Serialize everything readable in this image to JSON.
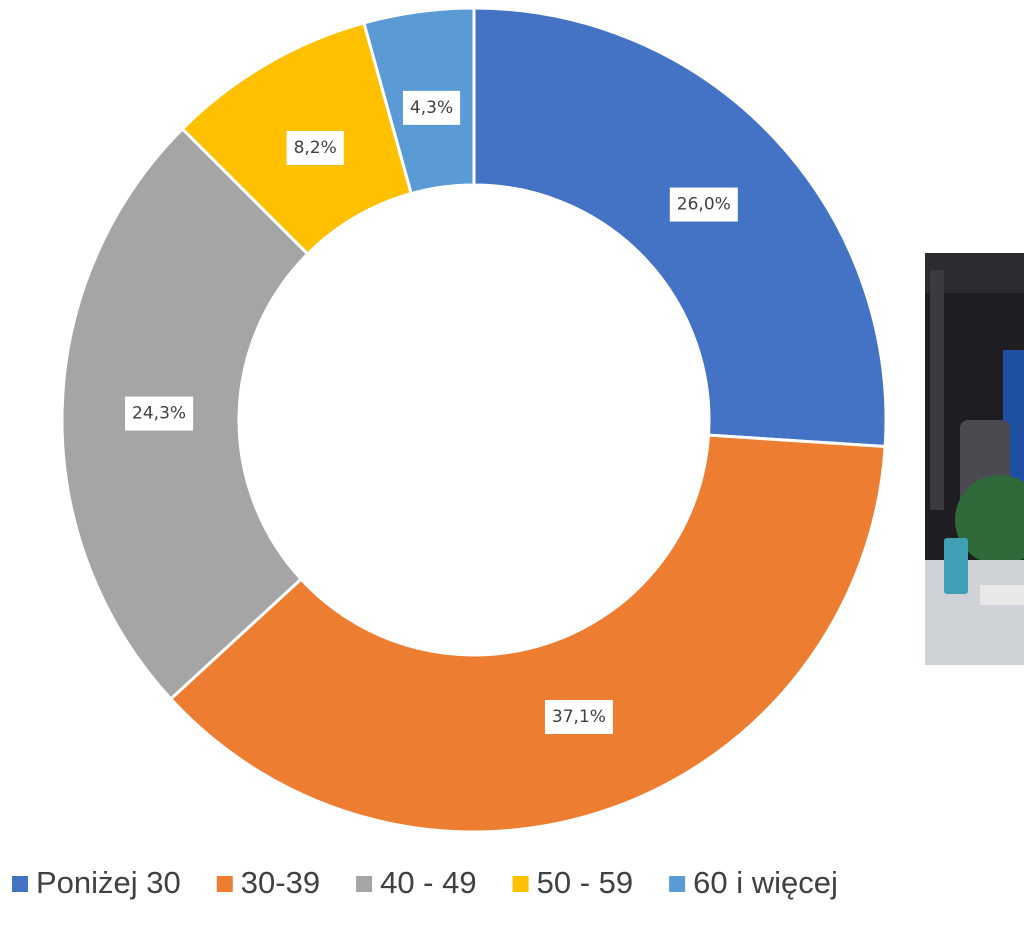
{
  "chart_data": {
    "type": "donut",
    "categories": [
      "Poniżej 30",
      "30-39",
      "40 - 49",
      "50 - 59",
      "60 i więcej"
    ],
    "values": [
      26.0,
      37.1,
      24.3,
      8.2,
      4.3
    ],
    "value_labels": [
      "26,0%",
      "37,1%",
      "24,3%",
      "8,2%",
      "4,3%"
    ],
    "colors": [
      "#4472c4",
      "#ed7d31",
      "#a5a5a5",
      "#ffc000",
      "#5b9bd5"
    ],
    "legend": "bottom"
  }
}
